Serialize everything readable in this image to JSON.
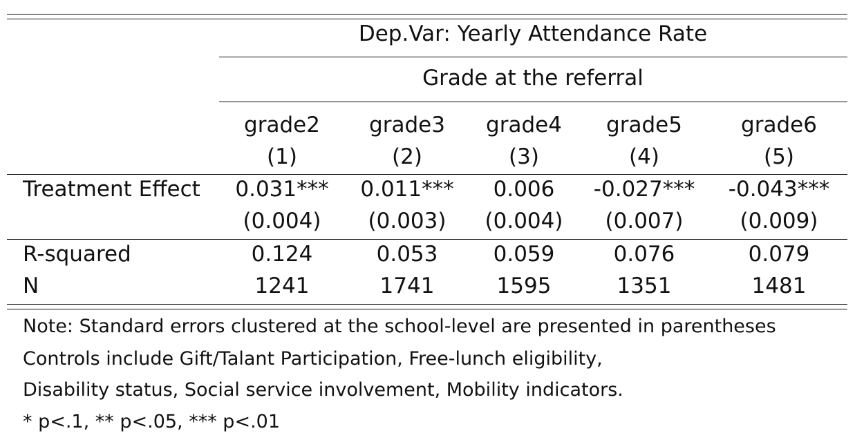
{
  "table": {
    "header": {
      "dep_var": "Dep.Var: Yearly Attendance Rate",
      "group": "Grade at the referral",
      "columns": [
        {
          "name": "grade2",
          "number": "(1)"
        },
        {
          "name": "grade3",
          "number": "(2)"
        },
        {
          "name": "grade4",
          "number": "(3)"
        },
        {
          "name": "grade5",
          "number": "(4)"
        },
        {
          "name": "grade6",
          "number": "(5)"
        }
      ]
    },
    "rows": {
      "treatment": {
        "label": "Treatment Effect",
        "estimates": [
          "0.031***",
          "0.011***",
          "0.006",
          "-0.027***",
          "-0.043***"
        ],
        "std_errors": [
          "(0.004)",
          "(0.003)",
          "(0.004)",
          "(0.007)",
          "(0.009)"
        ]
      },
      "r_squared": {
        "label": "R-squared",
        "values": [
          "0.124",
          "0.053",
          "0.059",
          "0.076",
          "0.079"
        ]
      },
      "n": {
        "label": "N",
        "values": [
          "1241",
          "1741",
          "1595",
          "1351",
          "1481"
        ]
      }
    },
    "notes": [
      "Note: Standard errors clustered at the school-level are presented in parentheses",
      "Controls include Gift/Talant Participation, Free-lunch eligibility,",
      "Disability status, Social service involvement, Mobility indicators.",
      "* p<.1, ** p<.05, *** p<.01"
    ]
  }
}
